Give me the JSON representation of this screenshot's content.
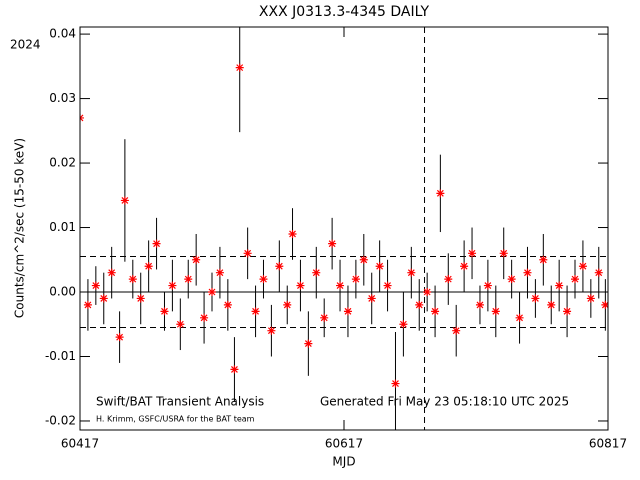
{
  "chart_data": {
    "type": "scatter",
    "title": "XXX J0313.3-4345 DAILY",
    "year_label": "2024",
    "x_label": "MJD",
    "y_label": "Counts/cm^2/sec (15-50 keV)",
    "annotations": [
      "Swift/BAT Transient Analysis",
      "Generated Fri May 23 05:18:10 UTC 2025",
      "H. Krimm, GSFC/USRA for the BAT team"
    ],
    "xlim": [
      60417,
      60817
    ],
    "xticks": [
      60417,
      60617,
      60817
    ],
    "ylim": [
      -0.0214,
      0.0411
    ],
    "yticks": [
      -0.02,
      -0.01,
      {
        "value": 0,
        "label": "0.00"
      },
      0.01,
      0.02,
      0.03,
      0.04
    ],
    "dashed_levels": [
      0.0055,
      -0.0055
    ],
    "marker_line": 60678,
    "series": [
      {
        "color": "#ff0000",
        "x": [
          60417,
          60423,
          60429,
          60435,
          60441,
          60447,
          60451,
          60457,
          60463,
          60469,
          60475,
          60481,
          60487,
          60493,
          60499,
          60505,
          60511,
          60517,
          60523,
          60529,
          60534,
          60538,
          60544,
          60550,
          60556,
          60562,
          60568,
          60574,
          60578,
          60584,
          60590,
          60596,
          60602,
          60608,
          60614,
          60620,
          60626,
          60632,
          60638,
          60644,
          60650,
          60656,
          60662,
          60668,
          60674,
          60680,
          60686,
          60690,
          60696,
          60702,
          60708,
          60714,
          60720,
          60726,
          60732,
          60738,
          60744,
          60750,
          60756,
          60762,
          60768,
          60774,
          60780,
          60786,
          60792,
          60798,
          60804,
          60810,
          60815
        ],
        "values": [
          0.027,
          -0.002,
          0.001,
          -0.001,
          0.003,
          -0.007,
          0.0142,
          0.002,
          -0.001,
          0.004,
          0.0075,
          -0.003,
          0.001,
          -0.005,
          0.002,
          0.005,
          -0.004,
          0.0,
          0.003,
          -0.002,
          -0.012,
          0.0348,
          0.006,
          -0.003,
          0.002,
          -0.006,
          0.004,
          -0.002,
          0.009,
          0.001,
          -0.008,
          0.003,
          -0.004,
          0.0075,
          0.001,
          -0.003,
          0.002,
          0.005,
          -0.001,
          0.004,
          0.001,
          -0.0142,
          -0.005,
          0.003,
          -0.002,
          0.0,
          -0.003,
          0.0153,
          0.002,
          -0.006,
          0.004,
          0.006,
          -0.002,
          0.001,
          -0.003,
          0.006,
          0.002,
          -0.004,
          0.003,
          -0.001,
          0.005,
          -0.002,
          0.001,
          -0.003,
          0.002,
          0.004,
          -0.001,
          0.003,
          -0.002
        ],
        "errors": [
          0.004,
          0.004,
          0.003,
          0.004,
          0.004,
          0.004,
          0.0095,
          0.003,
          0.004,
          0.004,
          0.004,
          0.003,
          0.004,
          0.004,
          0.003,
          0.004,
          0.004,
          0.003,
          0.004,
          0.004,
          0.005,
          0.01,
          0.004,
          0.004,
          0.003,
          0.004,
          0.004,
          0.003,
          0.004,
          0.004,
          0.005,
          0.004,
          0.003,
          0.004,
          0.004,
          0.004,
          0.003,
          0.004,
          0.004,
          0.004,
          0.004,
          0.008,
          0.005,
          0.004,
          0.004,
          0.003,
          0.004,
          0.006,
          0.004,
          0.004,
          0.004,
          0.004,
          0.003,
          0.004,
          0.004,
          0.004,
          0.003,
          0.004,
          0.004,
          0.003,
          0.004,
          0.003,
          0.004,
          0.004,
          0.003,
          0.004,
          0.003,
          0.004,
          0.004
        ]
      }
    ]
  }
}
